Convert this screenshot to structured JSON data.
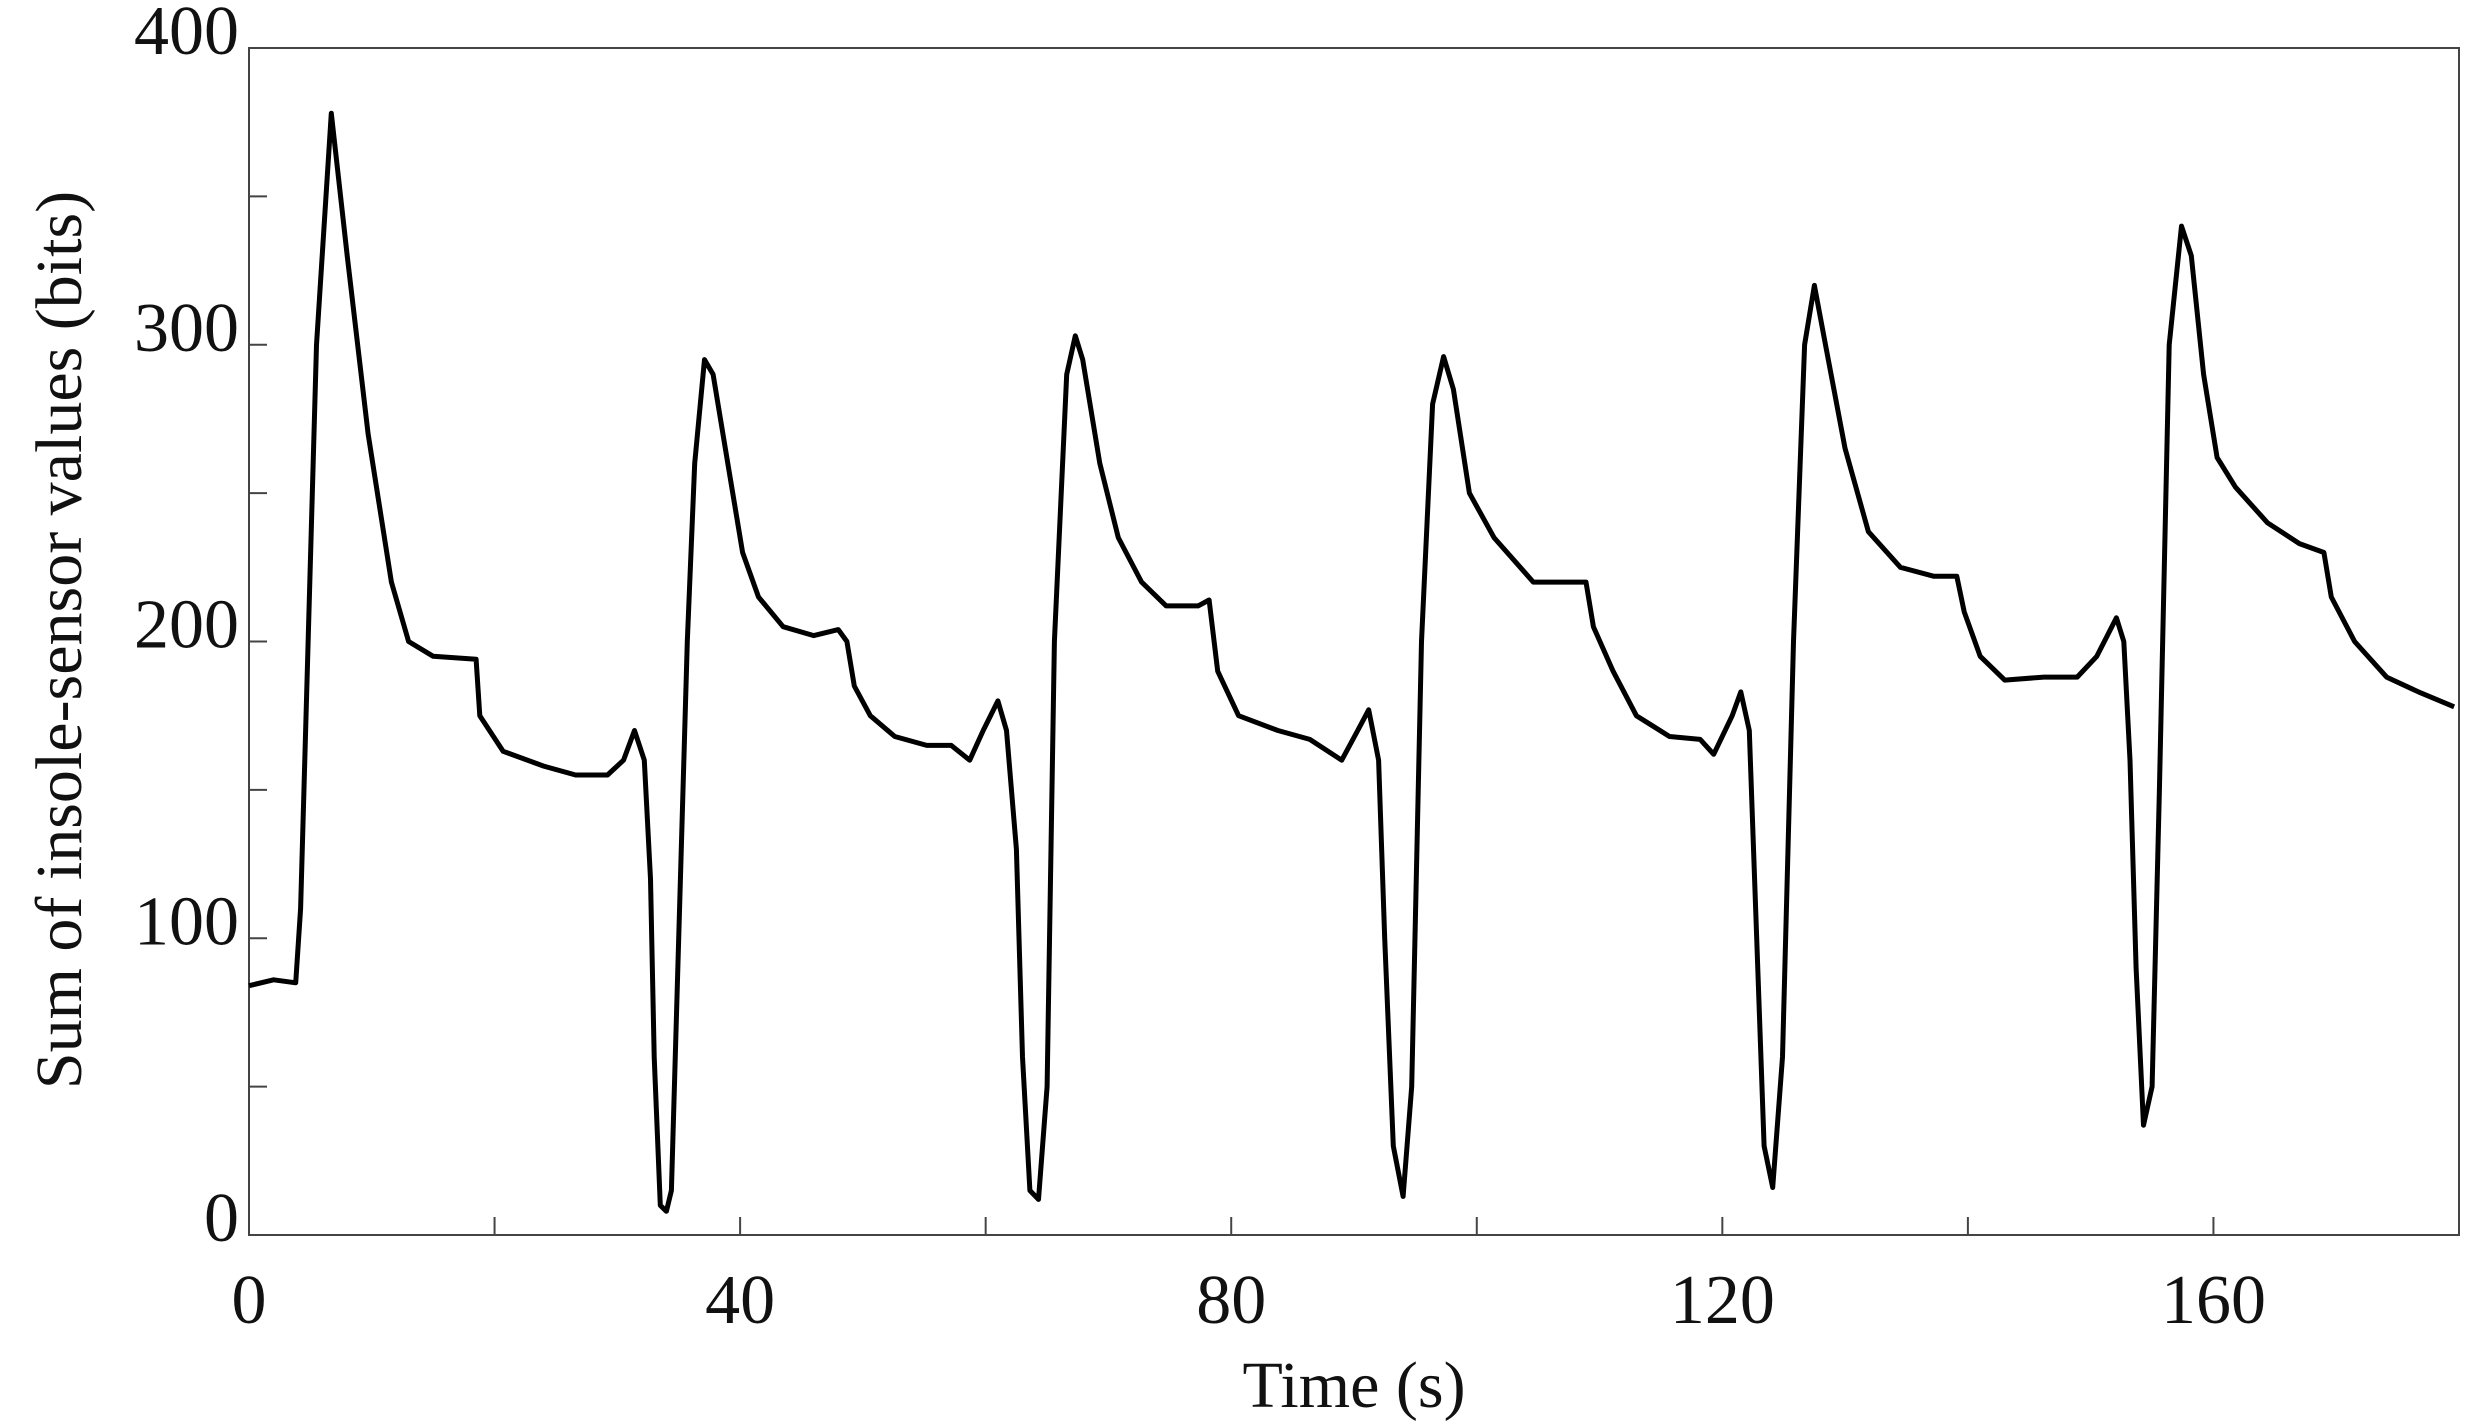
{
  "chart_data": {
    "type": "line",
    "xlabel": "Time (s)",
    "ylabel": "Sum of insole-sensor values (bits)",
    "xlim": [
      0,
      180
    ],
    "ylim": [
      0,
      400
    ],
    "xticks": [
      0,
      40,
      80,
      120,
      160
    ],
    "xticks_minor": [
      20,
      60,
      100,
      140
    ],
    "yticks": [
      0,
      100,
      200,
      300,
      400
    ],
    "yticks_minor": [
      50,
      150,
      250,
      350
    ],
    "grid": false,
    "series": [
      {
        "color": "#000000",
        "x": [
          0,
          2,
          3.8,
          4.2,
          5.5,
          6.7,
          8,
          9.7,
          11.6,
          13,
          15,
          18.5,
          18.8,
          20.7,
          24,
          26.6,
          29.2,
          30.5,
          31.4,
          32.2,
          32.7,
          33,
          33.5,
          34,
          34.4,
          35,
          35.7,
          36.3,
          37.1,
          37.8,
          39,
          40.2,
          41.5,
          43.5,
          46,
          48,
          48.7,
          49.3,
          50.6,
          52.6,
          55.2,
          57.2,
          58.7,
          59.8,
          61,
          61.7,
          62.5,
          63,
          63.6,
          64.3,
          65,
          65.6,
          66.6,
          67.3,
          67.9,
          69.3,
          70.8,
          72.7,
          74.7,
          77.3,
          78.2,
          78.9,
          80.6,
          83.8,
          86.4,
          89,
          90.3,
          91.2,
          92,
          92.5,
          93.2,
          94,
          94.7,
          95.5,
          96.4,
          97.3,
          98.1,
          99.4,
          101.4,
          104.6,
          107.9,
          108.9,
          109.5,
          111.1,
          113,
          115.7,
          118.2,
          119.3,
          120.8,
          121.5,
          122.2,
          122.8,
          123.4,
          124.1,
          124.9,
          125.8,
          126.7,
          127.5,
          128.4,
          130,
          131.9,
          134.5,
          137.2,
          139.1,
          139.7,
          141,
          143,
          146.2,
          148.9,
          150.5,
          152.1,
          152.7,
          153.2,
          153.7,
          154.3,
          155,
          155.6,
          156.4,
          157.4,
          158.2,
          159.2,
          160.3,
          161.8,
          164.4,
          167,
          169,
          169.6,
          171.5,
          174.1,
          176.7,
          179.6
        ],
        "values": [
          84,
          86,
          85,
          110,
          300,
          378,
          330,
          270,
          220,
          200,
          195,
          194,
          175,
          163,
          158,
          155,
          155,
          160,
          170,
          160,
          120,
          60,
          10,
          8,
          15,
          100,
          200,
          260,
          295,
          290,
          260,
          230,
          215,
          205,
          202,
          204,
          200,
          185,
          175,
          168,
          165,
          165,
          160,
          170,
          180,
          170,
          130,
          60,
          15,
          12,
          50,
          200,
          290,
          303,
          295,
          260,
          235,
          220,
          212,
          212,
          214,
          190,
          175,
          170,
          167,
          160,
          170,
          177,
          160,
          100,
          30,
          13,
          50,
          200,
          280,
          296,
          285,
          250,
          235,
          220,
          220,
          220,
          205,
          190,
          175,
          168,
          167,
          162,
          175,
          183,
          170,
          100,
          30,
          16,
          60,
          200,
          300,
          320,
          300,
          265,
          237,
          225,
          222,
          222,
          210,
          195,
          187,
          188,
          188,
          195,
          208,
          200,
          160,
          90,
          37,
          50,
          150,
          300,
          340,
          330,
          290,
          262,
          252,
          240,
          233,
          230,
          215,
          200,
          188,
          183,
          178
        ]
      }
    ]
  }
}
